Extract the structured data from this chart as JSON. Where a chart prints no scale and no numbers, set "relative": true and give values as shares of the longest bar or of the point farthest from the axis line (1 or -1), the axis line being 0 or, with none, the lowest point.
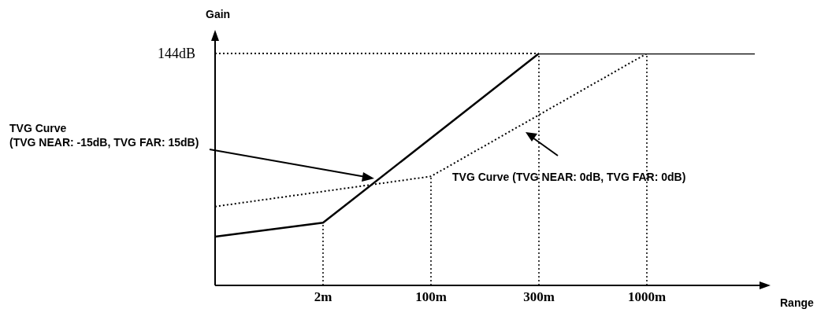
{
  "chart_data": {
    "type": "line",
    "xlabel": "Range",
    "ylabel": "Gain",
    "relative": true,
    "categories": [
      null,
      "2m",
      "100m",
      "300m",
      "1000m",
      null
    ],
    "series": [
      {
        "name": "TVG Curve (TVG NEAR: -15dB, TVG FAR: 15dB)",
        "color": "#000000",
        "line_style": "solid",
        "values": [
          0.21,
          0.27,
          null,
          1,
          1,
          1
        ]
      },
      {
        "name": "TVG Curve (TVG NEAR: 0dB, TVG FAR: 0dB)",
        "color": "#000000",
        "line_style": "dotted",
        "values": [
          0.34,
          null,
          0.47,
          null,
          1,
          null
        ]
      }
    ],
    "ref_lines": [
      {
        "axis": "y",
        "value": 1,
        "label": "144dB",
        "line_style": "dotted"
      },
      {
        "axis": "x",
        "value": "2m",
        "line_style": "dotted"
      },
      {
        "axis": "x",
        "value": "100m",
        "line_style": "dotted"
      },
      {
        "axis": "x",
        "value": "300m",
        "line_style": "dotted"
      },
      {
        "axis": "x",
        "value": "1000m",
        "line_style": "dotted"
      }
    ],
    "grid": false,
    "marker": "none"
  }
}
